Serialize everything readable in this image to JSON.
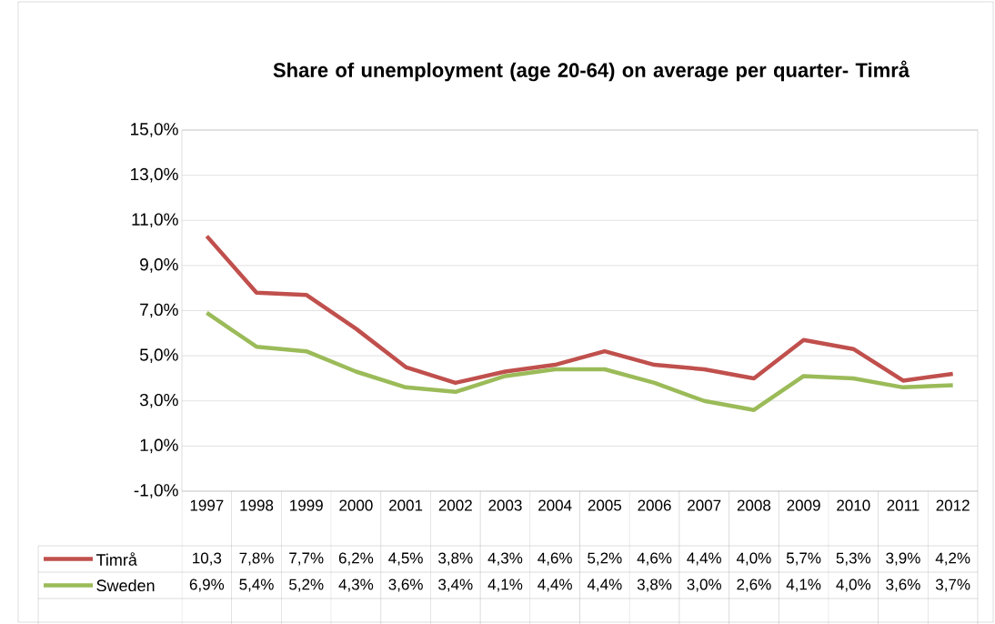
{
  "chart_data": {
    "type": "line",
    "title": "Share of unemployment (age 20-64) on average per quarter- Timrå",
    "categories": [
      "1997",
      "1998",
      "1999",
      "2000",
      "2001",
      "2002",
      "2003",
      "2004",
      "2005",
      "2006",
      "2007",
      "2008",
      "2009",
      "2010",
      "2011",
      "2012"
    ],
    "series": [
      {
        "name": "Timrå",
        "color": "#c0504d",
        "values": [
          10.3,
          7.8,
          7.7,
          6.2,
          4.5,
          3.8,
          4.3,
          4.6,
          5.2,
          4.6,
          4.4,
          4.0,
          5.7,
          5.3,
          3.9,
          4.2
        ],
        "value_labels": [
          "10,3",
          "7,8%",
          "7,7%",
          "6,2%",
          "4,5%",
          "3,8%",
          "4,3%",
          "4,6%",
          "5,2%",
          "4,6%",
          "4,4%",
          "4,0%",
          "5,7%",
          "5,3%",
          "3,9%",
          "4,2%"
        ]
      },
      {
        "name": "Sweden",
        "color": "#9bbb59",
        "values": [
          6.9,
          5.4,
          5.2,
          4.3,
          3.6,
          3.4,
          4.1,
          4.4,
          4.4,
          3.8,
          3.0,
          2.6,
          4.1,
          4.0,
          3.6,
          3.7
        ],
        "value_labels": [
          "6,9%",
          "5,4%",
          "5,2%",
          "4,3%",
          "3,6%",
          "3,4%",
          "4,1%",
          "4,4%",
          "4,4%",
          "3,8%",
          "3,0%",
          "2,6%",
          "4,1%",
          "4,0%",
          "3,6%",
          "3,7%"
        ]
      }
    ],
    "ylim": [
      -1,
      15
    ],
    "yticks": [
      {
        "value": -1,
        "label": "-1,0%"
      },
      {
        "value": 1,
        "label": "1,0%"
      },
      {
        "value": 3,
        "label": "3,0%"
      },
      {
        "value": 5,
        "label": "5,0%"
      },
      {
        "value": 7,
        "label": "7,0%"
      },
      {
        "value": 9,
        "label": "9,0%"
      },
      {
        "value": 11,
        "label": "11,0%"
      },
      {
        "value": 13,
        "label": "13,0%"
      },
      {
        "value": 15,
        "label": "15,0%"
      }
    ],
    "grid": "y",
    "legend": "bottom",
    "marker": "none",
    "line_style": "solid"
  }
}
